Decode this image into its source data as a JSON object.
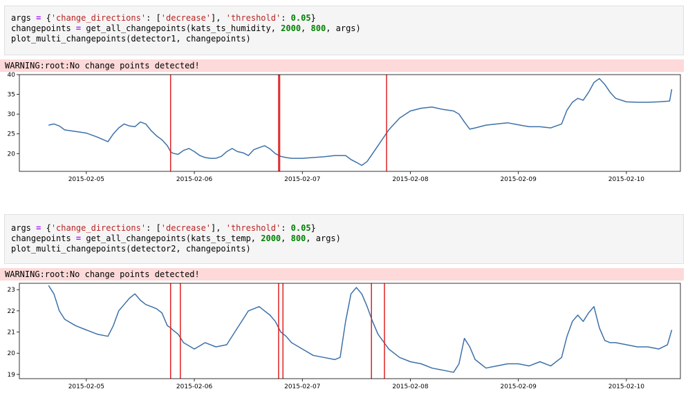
{
  "cells": [
    {
      "code": {
        "line1": {
          "a": "args ",
          "op": "=",
          "b": " {",
          "s1": "'change_directions'",
          "c": ": [",
          "s2": "'decrease'",
          "d": "], ",
          "s3": "'threshold'",
          "e": ": ",
          "n1": "0.05",
          "f": "}"
        },
        "line2": {
          "a": "changepoints ",
          "op": "=",
          "b": " get_all_changepoints(kats_ts_humidity, ",
          "n1": "2000",
          "c": ", ",
          "n2": "800",
          "d": ", args)"
        },
        "line3": {
          "a": "plot_multi_changepoints(detector1, changepoints)"
        }
      },
      "warning": "WARNING:root:No change points detected!"
    },
    {
      "code": {
        "line1": {
          "a": "args ",
          "op": "=",
          "b": " {",
          "s1": "'change_directions'",
          "c": ": [",
          "s2": "'decrease'",
          "d": "], ",
          "s3": "'threshold'",
          "e": ": ",
          "n1": "0.05",
          "f": "}"
        },
        "line2": {
          "a": "changepoints ",
          "op": "=",
          "b": " get_all_changepoints(kats_ts_temp, ",
          "n1": "2000",
          "c": ", ",
          "n2": "800",
          "d": ", args)"
        },
        "line3": {
          "a": "plot_multi_changepoints(detector2, changepoints)"
        }
      },
      "warning": "WARNING:root:No change points detected!"
    }
  ],
  "colors": {
    "line": "#3b70a8",
    "changepoint": "#e02020"
  },
  "chart_data": [
    {
      "type": "line",
      "x_ticks": [
        "2015-02-05",
        "2015-02-06",
        "2015-02-07",
        "2015-02-08",
        "2015-02-09",
        "2015-02-10"
      ],
      "y_ticks": [
        "20",
        "25",
        "30",
        "35",
        "40"
      ],
      "xlim": [
        -0.62,
        5.5
      ],
      "ylim": [
        15.5,
        40
      ],
      "changepoints": [
        0.78,
        1.78,
        1.79,
        2.78
      ],
      "x": [
        -0.35,
        -0.3,
        -0.25,
        -0.2,
        -0.15,
        -0.1,
        -0.05,
        0.0,
        0.05,
        0.1,
        0.15,
        0.2,
        0.25,
        0.3,
        0.35,
        0.4,
        0.45,
        0.5,
        0.55,
        0.6,
        0.65,
        0.7,
        0.75,
        0.78,
        0.8,
        0.85,
        0.9,
        0.95,
        1.0,
        1.05,
        1.1,
        1.15,
        1.2,
        1.25,
        1.3,
        1.35,
        1.4,
        1.45,
        1.5,
        1.55,
        1.6,
        1.65,
        1.7,
        1.75,
        1.8,
        1.85,
        1.9,
        2.0,
        2.1,
        2.2,
        2.3,
        2.4,
        2.45,
        2.5,
        2.55,
        2.6,
        2.7,
        2.8,
        2.9,
        3.0,
        3.1,
        3.2,
        3.3,
        3.4,
        3.45,
        3.5,
        3.55,
        3.6,
        3.7,
        3.8,
        3.9,
        4.0,
        4.1,
        4.2,
        4.3,
        4.4,
        4.45,
        4.5,
        4.55,
        4.6,
        4.65,
        4.7,
        4.75,
        4.8,
        4.85,
        4.9,
        5.0,
        5.1,
        5.2,
        5.3,
        5.4,
        5.42
      ],
      "y": [
        27.2,
        27.5,
        27,
        26,
        25.8,
        25.6,
        25.4,
        25.2,
        24.7,
        24.2,
        23.6,
        23,
        25,
        26.5,
        27.5,
        27,
        26.8,
        28,
        27.5,
        25.8,
        24.5,
        23.5,
        22,
        20.5,
        20.1,
        19.8,
        20.8,
        21.3,
        20.5,
        19.5,
        19,
        18.8,
        18.8,
        19.3,
        20.5,
        21.3,
        20.5,
        20.2,
        19.5,
        21,
        21.5,
        22,
        21.2,
        20,
        19.3,
        19,
        18.8,
        18.8,
        19,
        19.2,
        19.5,
        19.5,
        18.5,
        17.8,
        17,
        18,
        22,
        26,
        29,
        30.8,
        31.5,
        31.8,
        31.2,
        30.8,
        30,
        28,
        26.2,
        26.5,
        27.2,
        27.5,
        27.8,
        27.3,
        26.8,
        26.8,
        26.5,
        27.5,
        31,
        33,
        34,
        33.5,
        35.5,
        38,
        39,
        37.5,
        35.5,
        34,
        33.1,
        33,
        33,
        33.1,
        33.3,
        36.3
      ],
      "line_color": "#3b70a8",
      "changepoint_color": "#e02020"
    },
    {
      "type": "line",
      "x_ticks": [
        "2015-02-05",
        "2015-02-06",
        "2015-02-07",
        "2015-02-08",
        "2015-02-09",
        "2015-02-10"
      ],
      "y_ticks": [
        "19",
        "20",
        "21",
        "22",
        "23"
      ],
      "xlim": [
        -0.62,
        5.5
      ],
      "ylim": [
        18.8,
        23.3
      ],
      "changepoints": [
        0.78,
        0.87,
        1.78,
        1.82,
        2.64,
        2.76
      ],
      "x": [
        -0.35,
        -0.3,
        -0.25,
        -0.2,
        -0.1,
        0.0,
        0.1,
        0.2,
        0.25,
        0.3,
        0.35,
        0.4,
        0.45,
        0.5,
        0.55,
        0.6,
        0.65,
        0.7,
        0.75,
        0.78,
        0.8,
        0.85,
        0.9,
        1.0,
        1.1,
        1.2,
        1.3,
        1.4,
        1.45,
        1.5,
        1.55,
        1.6,
        1.65,
        1.7,
        1.75,
        1.8,
        1.85,
        1.9,
        2.0,
        2.1,
        2.2,
        2.3,
        2.35,
        2.4,
        2.45,
        2.5,
        2.55,
        2.6,
        2.65,
        2.7,
        2.8,
        2.9,
        3.0,
        3.1,
        3.2,
        3.3,
        3.4,
        3.45,
        3.5,
        3.55,
        3.6,
        3.65,
        3.7,
        3.8,
        3.9,
        4.0,
        4.1,
        4.2,
        4.3,
        4.4,
        4.45,
        4.5,
        4.55,
        4.6,
        4.65,
        4.7,
        4.75,
        4.8,
        4.85,
        4.9,
        5.0,
        5.1,
        5.2,
        5.3,
        5.38,
        5.42
      ],
      "y": [
        23.2,
        22.8,
        22,
        21.6,
        21.3,
        21.1,
        20.9,
        20.8,
        21.3,
        22,
        22.3,
        22.6,
        22.8,
        22.5,
        22.3,
        22.2,
        22.1,
        21.9,
        21.3,
        21.2,
        21.1,
        20.9,
        20.5,
        20.2,
        20.5,
        20.3,
        20.4,
        21.2,
        21.6,
        22,
        22.1,
        22.2,
        22,
        21.8,
        21.5,
        21,
        20.8,
        20.5,
        20.2,
        19.9,
        19.8,
        19.7,
        19.8,
        21.5,
        22.8,
        23.1,
        22.8,
        22.2,
        21.5,
        20.9,
        20.2,
        19.8,
        19.6,
        19.5,
        19.3,
        19.2,
        19.1,
        19.5,
        20.7,
        20.3,
        19.7,
        19.5,
        19.3,
        19.4,
        19.5,
        19.5,
        19.4,
        19.6,
        19.4,
        19.8,
        20.8,
        21.5,
        21.8,
        21.5,
        21.9,
        22.2,
        21.2,
        20.6,
        20.5,
        20.5,
        20.4,
        20.3,
        20.3,
        20.2,
        20.4,
        21.1
      ],
      "line_color": "#3b70a8",
      "changepoint_color": "#e02020"
    }
  ]
}
